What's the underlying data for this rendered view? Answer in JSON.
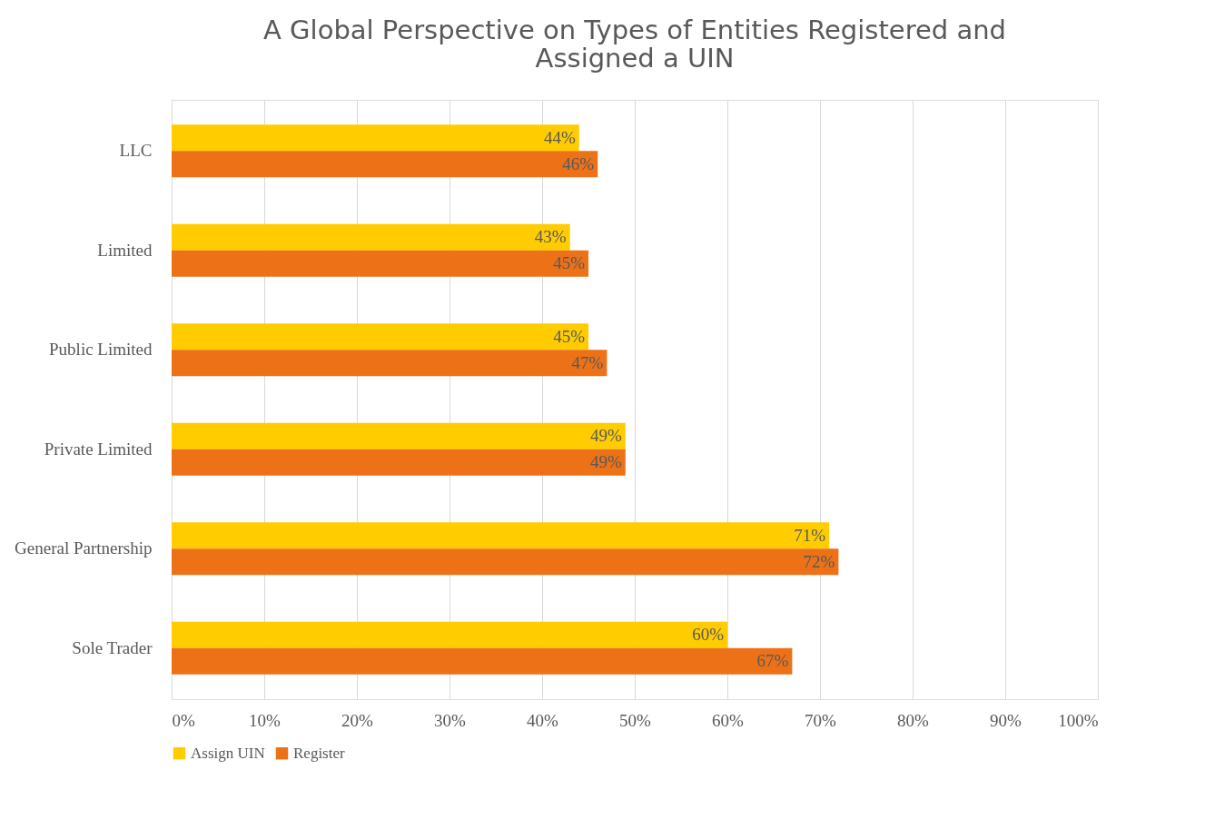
{
  "chart_data": {
    "type": "bar",
    "orientation": "horizontal",
    "title": "A Global Perspective on Types of Entities Registered and Assigned a UIN",
    "categories": [
      "LLC",
      "Limited",
      "Public Limited",
      "Private Limited",
      "General Partnership",
      "Sole Trader"
    ],
    "series": [
      {
        "name": "Assign UIN",
        "color": "#ffcc00",
        "values": [
          44,
          43,
          45,
          49,
          71,
          60
        ],
        "value_labels": [
          "44%",
          "43%",
          "45%",
          "49%",
          "71%",
          "60%"
        ]
      },
      {
        "name": "Register",
        "color": "#ed7117",
        "values": [
          46,
          45,
          47,
          49,
          72,
          67
        ],
        "value_labels": [
          "46%",
          "45%",
          "47%",
          "49%",
          "72%",
          "67%"
        ]
      }
    ],
    "xlim": [
      0,
      100
    ],
    "xticks": [
      {
        "value": 0,
        "label": "0%"
      },
      {
        "value": 10,
        "label": "10%"
      },
      {
        "value": 20,
        "label": "20%"
      },
      {
        "value": 30,
        "label": "30%"
      },
      {
        "value": 40,
        "label": "40%"
      },
      {
        "value": 50,
        "label": "50%"
      },
      {
        "value": 60,
        "label": "60%"
      },
      {
        "value": 70,
        "label": "70%"
      },
      {
        "value": 80,
        "label": "80%"
      },
      {
        "value": 90,
        "label": "90%"
      },
      {
        "value": 100,
        "label": "100%"
      }
    ],
    "grid": "x",
    "legend": "bottom"
  }
}
